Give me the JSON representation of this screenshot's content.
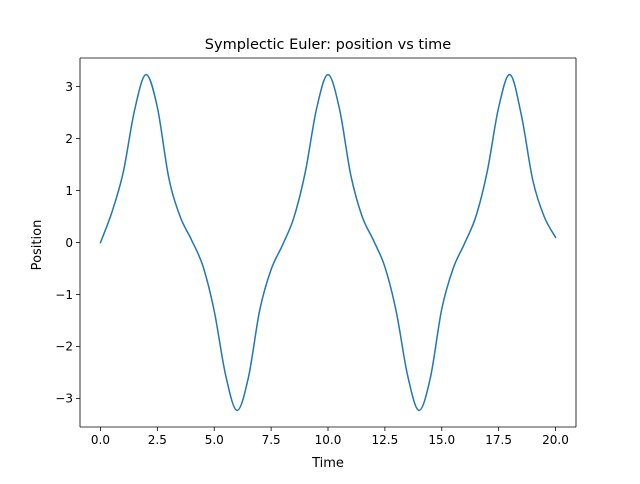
{
  "chart_data": {
    "type": "line",
    "title": "Symplectic Euler: position vs time",
    "xlabel": "Time",
    "ylabel": "Position",
    "xlim": [
      -0.9,
      20.9
    ],
    "ylim": [
      -3.55,
      3.55
    ],
    "xticks": [
      0.0,
      2.5,
      5.0,
      7.5,
      10.0,
      12.5,
      15.0,
      17.5,
      20.0
    ],
    "xtick_labels": [
      "0.0",
      "2.5",
      "5.0",
      "7.5",
      "10.0",
      "12.5",
      "15.0",
      "17.5",
      "20.0"
    ],
    "yticks": [
      -3,
      -2,
      -1,
      0,
      1,
      2,
      3
    ],
    "ytick_labels": [
      "−3",
      "−2",
      "−1",
      "0",
      "1",
      "2",
      "3"
    ],
    "grid": false,
    "legend": "none",
    "series": [
      {
        "color": "#1f77b4",
        "x": [
          0.0,
          0.5,
          1.0,
          1.5,
          2.0,
          2.5,
          3.0,
          3.5,
          4.0,
          4.5,
          5.0,
          5.5,
          6.0,
          6.5,
          7.0,
          7.5,
          8.0,
          8.5,
          9.0,
          9.5,
          10.0,
          10.5,
          11.0,
          11.5,
          12.0,
          12.5,
          13.0,
          13.5,
          14.0,
          14.5,
          15.0,
          15.5,
          16.0,
          16.5,
          17.0,
          17.5,
          18.0,
          18.5,
          19.0,
          19.5,
          20.0
        ],
        "y": [
          0.0,
          0.58,
          1.35,
          2.55,
          3.23,
          2.6,
          1.25,
          0.5,
          0.05,
          -0.45,
          -1.32,
          -2.55,
          -3.23,
          -2.6,
          -1.3,
          -0.52,
          -0.05,
          0.48,
          1.35,
          2.58,
          3.23,
          2.58,
          1.3,
          0.5,
          0.04,
          -0.47,
          -1.33,
          -2.56,
          -3.23,
          -2.6,
          -1.28,
          -0.5,
          -0.02,
          0.5,
          1.37,
          2.6,
          3.23,
          2.45,
          1.2,
          0.5,
          0.1
        ]
      }
    ]
  }
}
